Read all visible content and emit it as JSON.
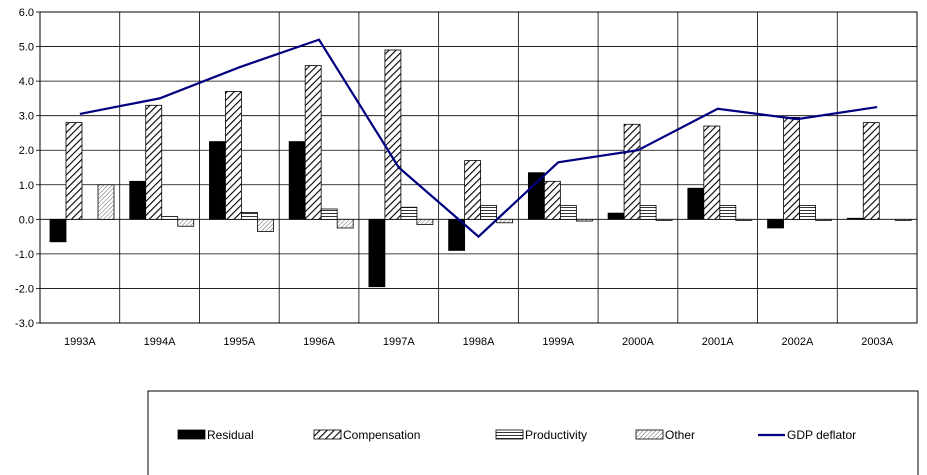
{
  "chart_data": {
    "type": "bar",
    "title": "",
    "xlabel": "",
    "ylabel": "",
    "ylim": [
      -3.0,
      6.0
    ],
    "yticks": [
      "6.0",
      "5.0",
      "4.0",
      "3.0",
      "2.0",
      "1.0",
      "0.0",
      "-1.0",
      "-2.0",
      "-3.0"
    ],
    "grid": true,
    "legend_position": "bottom",
    "categories": [
      "1993A",
      "1994A",
      "1995A",
      "1996A",
      "1997A",
      "1998A",
      "1999A",
      "2000A",
      "2001A",
      "2002A",
      "2003A"
    ],
    "series": [
      {
        "name": "Residual",
        "kind": "bar",
        "pattern": "solid-black",
        "values": [
          -0.65,
          1.1,
          2.25,
          2.25,
          -1.95,
          -0.9,
          1.35,
          0.18,
          0.9,
          -0.25,
          0.03
        ]
      },
      {
        "name": "Compensation",
        "kind": "bar",
        "pattern": "diagonal-hatch",
        "values": [
          2.8,
          3.3,
          3.7,
          4.45,
          4.9,
          1.7,
          1.1,
          2.75,
          2.7,
          2.95,
          2.8
        ]
      },
      {
        "name": "Productivity",
        "kind": "bar",
        "pattern": "horizontal-lines",
        "values": [
          0.0,
          0.08,
          0.2,
          0.3,
          0.35,
          0.4,
          0.4,
          0.4,
          0.4,
          0.4,
          0.0
        ]
      },
      {
        "name": "Other",
        "kind": "bar",
        "pattern": "fine-diagonal",
        "values": [
          1.0,
          -0.2,
          -0.35,
          -0.25,
          -0.15,
          -0.1,
          -0.05,
          -0.03,
          -0.03,
          -0.03,
          -0.03
        ]
      },
      {
        "name": "GDP deflator",
        "kind": "line",
        "color": "#000080",
        "values": [
          3.05,
          3.5,
          4.4,
          5.2,
          1.5,
          -0.5,
          1.65,
          2.0,
          3.2,
          2.9,
          3.25
        ]
      }
    ]
  }
}
